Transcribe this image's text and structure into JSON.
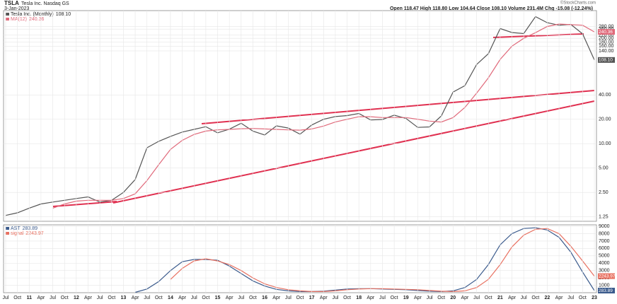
{
  "header": {
    "symbol": "TSLA",
    "subtitle": "Tesla Inc. Nasdaq GS",
    "date": "3-Jan-2023",
    "quote": "Open 118.47  High 118.80  Low 104.64  Close 108.10  Volume 231.4M  Chg -15.08 (-12.24%)",
    "credit": "©StockCharts.com"
  },
  "chart_data": [
    {
      "type": "line",
      "log_scale": true,
      "grid": true,
      "categories": [
        "Jul",
        "Oct",
        "11",
        "Apr",
        "Jul",
        "Oct",
        "12",
        "Apr",
        "Jul",
        "Oct",
        "13",
        "Apr",
        "Jul",
        "Oct",
        "14",
        "Apr",
        "Jul",
        "Oct",
        "15",
        "Apr",
        "Jul",
        "Oct",
        "16",
        "Apr",
        "Jul",
        "Oct",
        "17",
        "Apr",
        "Jul",
        "Oct",
        "18",
        "Apr",
        "Jul",
        "Oct",
        "19",
        "Apr",
        "Jul",
        "Oct",
        "20",
        "Apr",
        "Jul",
        "Oct",
        "21",
        "Apr",
        "Jul",
        "Oct",
        "22",
        "Apr",
        "Jul",
        "Oct",
        "23"
      ],
      "ylim": [
        1.1,
        440
      ],
      "yticks": [
        {
          "value": 1.25,
          "label": "1.25"
        },
        {
          "value": 2.5,
          "label": "2.50"
        },
        {
          "value": 5,
          "label": "5.00"
        },
        {
          "value": 10,
          "label": "10.00"
        },
        {
          "value": 20,
          "label": "20.00"
        },
        {
          "value": 40,
          "label": "40.00"
        },
        {
          "value": 140,
          "label": "140.00"
        },
        {
          "value": 160,
          "label": "160.00"
        },
        {
          "value": 180,
          "label": "180.00"
        },
        {
          "value": 200,
          "label": "200.00"
        },
        {
          "value": 220,
          "label": "220.00"
        },
        {
          "value": 260,
          "label": "260.00"
        },
        {
          "value": 280,
          "label": "280.00"
        }
      ],
      "series": [
        {
          "name": "Tesla Inc. (Monthly)",
          "color": "#555555",
          "values": [
            1.3,
            1.4,
            1.6,
            1.8,
            1.9,
            2.0,
            2.1,
            2.2,
            1.9,
            2.0,
            2.5,
            3.6,
            8.9,
            10.7,
            12.3,
            13.9,
            15,
            16.2,
            13.6,
            15.1,
            17.9,
            14.3,
            12.8,
            16.6,
            15.6,
            13.1,
            17,
            20,
            21.6,
            22.2,
            23.6,
            19.6,
            19.9,
            22.5,
            20.5,
            15.9,
            16.1,
            22,
            43.4,
            52,
            95,
            129,
            264,
            236,
            229,
            371,
            312,
            290,
            297,
            227,
            108.1
          ],
          "value_labels": [
            null,
            null,
            null,
            null,
            null,
            null,
            null,
            null,
            null,
            null,
            null,
            null,
            null,
            null,
            null,
            null,
            null,
            null,
            null,
            null,
            null,
            null,
            null,
            null,
            null,
            null,
            null,
            null,
            null,
            null,
            null,
            null,
            null,
            null,
            null,
            null,
            null,
            null,
            null,
            null,
            null,
            null,
            null,
            null,
            null,
            null,
            null,
            null,
            null,
            null,
            "108.10"
          ]
        },
        {
          "name": "MA(12)",
          "color": "#e0697a",
          "values": [
            null,
            null,
            null,
            null,
            1.6,
            1.8,
            1.95,
            2.0,
            2.0,
            2.0,
            2.1,
            2.4,
            3.5,
            5.5,
            8.5,
            11,
            13,
            14.3,
            14.8,
            15,
            15.3,
            15.4,
            15.2,
            15,
            14.8,
            14.7,
            15.2,
            16.5,
            18.5,
            20,
            21.5,
            21.5,
            21,
            21,
            21,
            20,
            19,
            18.5,
            21,
            28,
            42,
            65,
            110,
            160,
            200,
            235,
            280,
            300,
            295,
            290,
            240.36
          ],
          "value_labels": [
            null,
            null,
            null,
            null,
            null,
            null,
            null,
            null,
            null,
            null,
            null,
            null,
            null,
            null,
            null,
            null,
            null,
            null,
            null,
            null,
            null,
            null,
            null,
            null,
            null,
            null,
            null,
            null,
            null,
            null,
            null,
            null,
            null,
            null,
            null,
            null,
            null,
            null,
            null,
            null,
            null,
            null,
            null,
            null,
            null,
            null,
            null,
            null,
            null,
            null,
            "240.36"
          ]
        }
      ]
    },
    {
      "type": "line",
      "log_scale": false,
      "grid": true,
      "ylim": [
        0,
        9200
      ],
      "yticks": [
        1000,
        2000,
        3000,
        4000,
        5000,
        6000,
        7000,
        8000,
        9000
      ],
      "series": [
        {
          "name": "AST",
          "color": "#3a5a8c",
          "values": [
            null,
            null,
            null,
            null,
            null,
            null,
            null,
            null,
            null,
            null,
            null,
            50,
            500,
            1500,
            3000,
            4200,
            4500,
            4500,
            4400,
            3600,
            2600,
            1600,
            900,
            450,
            250,
            150,
            150,
            200,
            350,
            500,
            550,
            550,
            500,
            450,
            400,
            300,
            200,
            150,
            250,
            700,
            1800,
            3800,
            6500,
            8000,
            8700,
            8800,
            8500,
            7500,
            5500,
            2800,
            283.89
          ],
          "value_labels": [
            null,
            null,
            null,
            null,
            null,
            null,
            null,
            null,
            null,
            null,
            null,
            null,
            null,
            null,
            null,
            null,
            null,
            null,
            null,
            null,
            null,
            null,
            null,
            null,
            null,
            null,
            null,
            null,
            null,
            null,
            null,
            null,
            null,
            null,
            null,
            null,
            null,
            null,
            null,
            null,
            null,
            null,
            null,
            null,
            null,
            null,
            null,
            null,
            null,
            null,
            "283.89"
          ]
        },
        {
          "name": "signal",
          "color": "#e87060",
          "values": [
            null,
            null,
            null,
            null,
            null,
            null,
            null,
            null,
            null,
            null,
            null,
            null,
            null,
            null,
            1800,
            3300,
            4300,
            4600,
            4300,
            3800,
            3000,
            2000,
            1200,
            700,
            400,
            250,
            150,
            150,
            250,
            400,
            500,
            550,
            550,
            500,
            450,
            400,
            300,
            200,
            150,
            250,
            700,
            1800,
            3800,
            6200,
            7800,
            8600,
            8700,
            8000,
            6300,
            4300,
            2243.97
          ],
          "value_labels": [
            null,
            null,
            null,
            null,
            null,
            null,
            null,
            null,
            null,
            null,
            null,
            null,
            null,
            null,
            null,
            null,
            null,
            null,
            null,
            null,
            null,
            null,
            null,
            null,
            null,
            null,
            null,
            null,
            null,
            null,
            null,
            null,
            null,
            null,
            null,
            null,
            null,
            null,
            null,
            null,
            null,
            null,
            null,
            null,
            null,
            null,
            null,
            null,
            null,
            null,
            "2243.97"
          ]
        }
      ]
    }
  ]
}
